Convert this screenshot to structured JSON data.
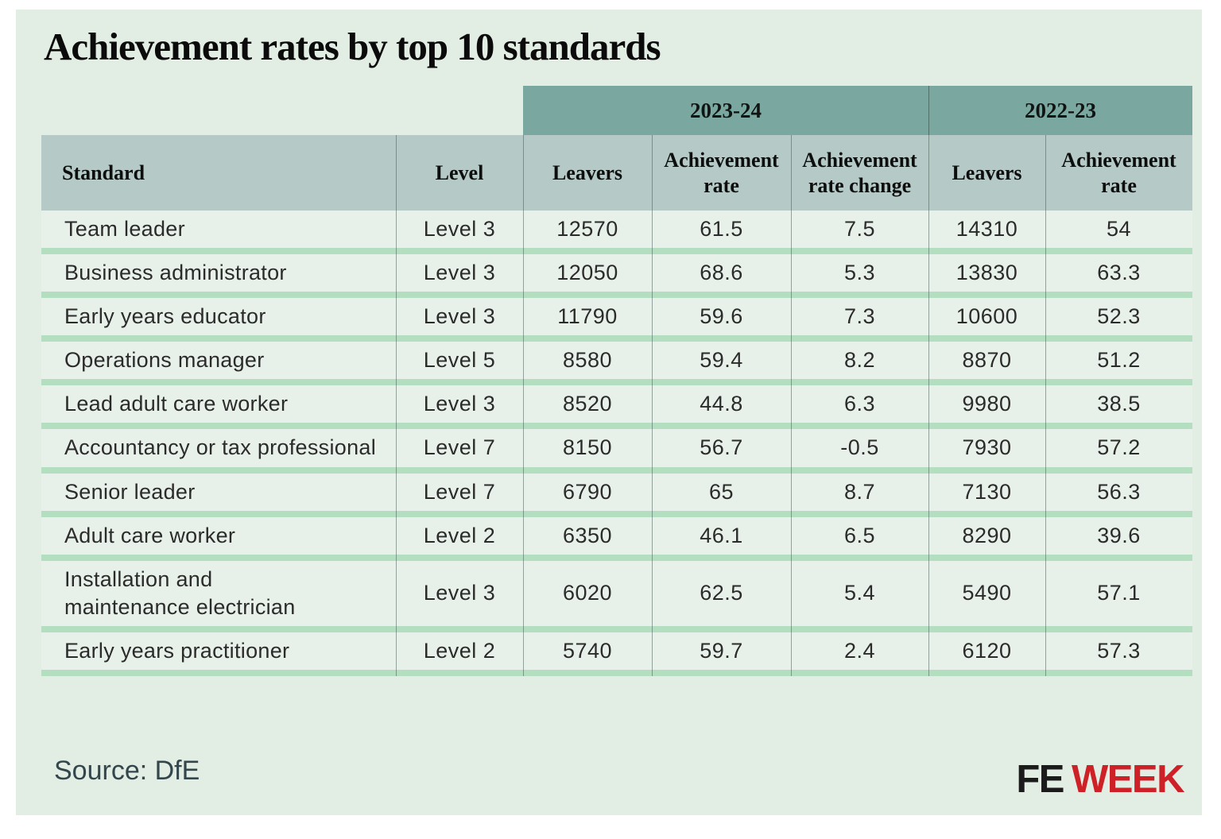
{
  "title": "Achievement rates by top 10 standards",
  "source_label": "Source: DfE",
  "logo": {
    "fe": "FE",
    "week": "WEEK"
  },
  "colors": {
    "panel_bg": "#e2ede4",
    "cell_bg": "#e8f1e9",
    "row_divider_green": "#b3dec0",
    "year_band_teal": "#7aa8a1",
    "subheader_gray_teal": "#b5c9c6",
    "logo_week_red": "#cd2027",
    "source_text": "#33464c"
  },
  "table": {
    "year_groups": [
      "2023-24",
      "2022-23"
    ],
    "headers": [
      "Standard",
      "Level",
      "Leavers",
      "Achievement rate",
      "Achievement rate change",
      "Leavers",
      "Achievement rate"
    ],
    "field_names": [
      "standard",
      "level",
      "leavers-2324",
      "achievement-rate-2324",
      "achievement-rate-change",
      "leavers-2223",
      "achievement-rate-2223"
    ],
    "rows": [
      [
        "Team leader",
        "Level 3",
        "12570",
        "61.5",
        "7.5",
        "14310",
        "54"
      ],
      [
        "Business administrator",
        "Level 3",
        "12050",
        "68.6",
        "5.3",
        "13830",
        "63.3"
      ],
      [
        "Early years educator",
        "Level 3",
        "11790",
        "59.6",
        "7.3",
        "10600",
        "52.3"
      ],
      [
        "Operations manager",
        "Level 5",
        "8580",
        "59.4",
        "8.2",
        "8870",
        "51.2"
      ],
      [
        "Lead adult care worker",
        "Level 3",
        "8520",
        "44.8",
        "6.3",
        "9980",
        "38.5"
      ],
      [
        "Accountancy or tax professional",
        "Level 7",
        "8150",
        "56.7",
        "-0.5",
        "7930",
        "57.2"
      ],
      [
        "Senior leader",
        "Level 7",
        "6790",
        "65",
        "8.7",
        "7130",
        "56.3"
      ],
      [
        "Adult care worker",
        "Level 2",
        "6350",
        "46.1",
        "6.5",
        "8290",
        "39.6"
      ],
      [
        "Installation and\nmaintenance electrician",
        "Level 3",
        "6020",
        "62.5",
        "5.4",
        "5490",
        "57.1"
      ],
      [
        "Early years practitioner",
        "Level 2",
        "5740",
        "59.7",
        "2.4",
        "6120",
        "57.3"
      ]
    ]
  },
  "chart_data": {
    "type": "table",
    "title": "Achievement rates by top 10 standards",
    "column_groups": [
      {
        "label": "",
        "span": 2
      },
      {
        "label": "2023-24",
        "span": 3
      },
      {
        "label": "2022-23",
        "span": 2
      }
    ],
    "columns": [
      "Standard",
      "Level",
      "Leavers (2023-24)",
      "Achievement rate (2023-24)",
      "Achievement rate change",
      "Leavers (2022-23)",
      "Achievement rate (2022-23)"
    ],
    "rows": [
      [
        "Team leader",
        "Level 3",
        12570,
        61.5,
        7.5,
        14310,
        54
      ],
      [
        "Business administrator",
        "Level 3",
        12050,
        68.6,
        5.3,
        13830,
        63.3
      ],
      [
        "Early years educator",
        "Level 3",
        11790,
        59.6,
        7.3,
        10600,
        52.3
      ],
      [
        "Operations manager",
        "Level 5",
        8580,
        59.4,
        8.2,
        8870,
        51.2
      ],
      [
        "Lead adult care worker",
        "Level 3",
        8520,
        44.8,
        6.3,
        9980,
        38.5
      ],
      [
        "Accountancy or tax professional",
        "Level 7",
        8150,
        56.7,
        -0.5,
        7930,
        57.2
      ],
      [
        "Senior leader",
        "Level 7",
        6790,
        65,
        8.7,
        7130,
        56.3
      ],
      [
        "Adult care worker",
        "Level 2",
        6350,
        46.1,
        6.5,
        8290,
        39.6
      ],
      [
        "Installation and maintenance electrician",
        "Level 3",
        6020,
        62.5,
        5.4,
        5490,
        57.1
      ],
      [
        "Early years practitioner",
        "Level 2",
        5740,
        59.7,
        2.4,
        6120,
        57.3
      ]
    ],
    "source": "Source: DfE"
  }
}
